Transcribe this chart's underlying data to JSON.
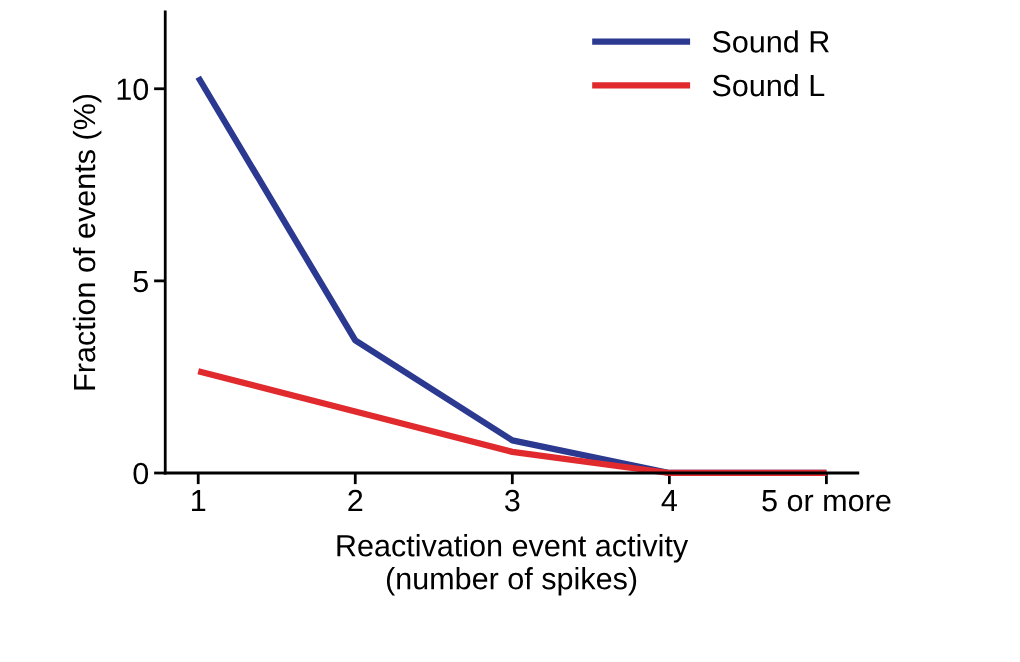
{
  "chart_data": {
    "type": "line",
    "xlabel": "Reactivation event activity\n(number of spikes)",
    "ylabel": "Fraction of events (%)",
    "categories": [
      "1",
      "2",
      "3",
      "4",
      "5 or more"
    ],
    "series": [
      {
        "name": "Sound R",
        "color": "#2b3990",
        "values": [
          10.3,
          3.45,
          0.85,
          0,
          0
        ]
      },
      {
        "name": "Sound L",
        "color": "#e02a2e",
        "values": [
          2.65,
          1.6,
          0.55,
          0,
          0
        ]
      }
    ],
    "ylim": [
      0,
      12
    ],
    "yticks": [
      0,
      5,
      10
    ],
    "grid": false,
    "legend": "top right",
    "marker": "none",
    "line_style": "solid"
  }
}
